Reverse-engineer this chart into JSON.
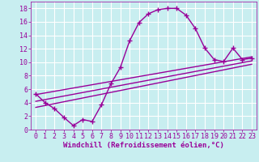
{
  "xlabel": "Windchill (Refroidissement éolien,°C)",
  "bg_color": "#c8eef0",
  "line_color": "#990099",
  "grid_color": "#ffffff",
  "xlim": [
    -0.5,
    23.5
  ],
  "ylim": [
    0,
    19
  ],
  "xticks": [
    0,
    1,
    2,
    3,
    4,
    5,
    6,
    7,
    8,
    9,
    10,
    11,
    12,
    13,
    14,
    15,
    16,
    17,
    18,
    19,
    20,
    21,
    22,
    23
  ],
  "yticks": [
    0,
    2,
    4,
    6,
    8,
    10,
    12,
    14,
    16,
    18
  ],
  "curve_x": [
    0,
    1,
    2,
    3,
    4,
    5,
    6,
    7,
    8,
    9,
    10,
    11,
    12,
    13,
    14,
    15,
    16,
    17,
    18,
    19,
    20,
    21,
    22,
    23
  ],
  "curve_y": [
    5.3,
    4.0,
    3.1,
    1.8,
    0.6,
    1.5,
    1.2,
    3.7,
    6.8,
    9.2,
    13.2,
    15.9,
    17.2,
    17.8,
    18.0,
    18.0,
    17.0,
    15.0,
    12.1,
    10.4,
    10.1,
    12.1,
    10.4,
    10.6
  ],
  "line1_x": [
    0,
    23
  ],
  "line1_y": [
    5.2,
    10.8
  ],
  "line2_x": [
    0,
    23
  ],
  "line2_y": [
    4.2,
    10.2
  ],
  "line3_x": [
    0,
    23
  ],
  "line3_y": [
    3.3,
    9.7
  ],
  "xlabel_fontsize": 6.5,
  "tick_fontsize": 6,
  "linewidth": 1.0,
  "markersize": 2.5
}
